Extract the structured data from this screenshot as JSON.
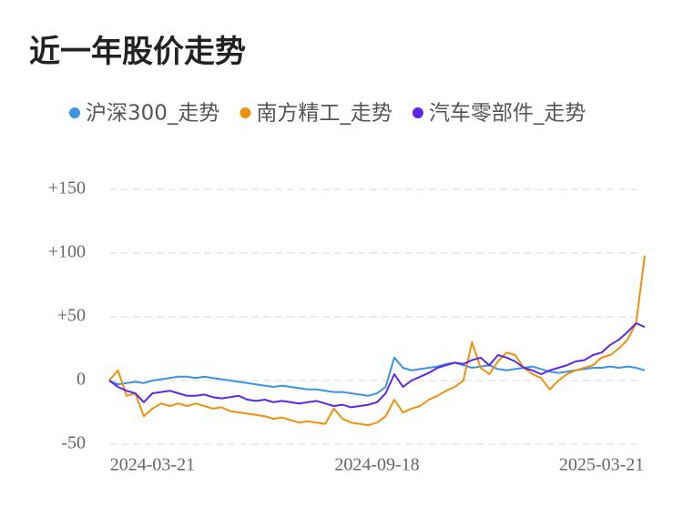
{
  "chart_data": {
    "type": "line",
    "title": "近一年股价走势",
    "categories": [
      null,
      null,
      null,
      null,
      null,
      "2024-03-21",
      null,
      null,
      null,
      null,
      null,
      null,
      null,
      null,
      null,
      null,
      null,
      null,
      null,
      null,
      null,
      null,
      null,
      null,
      null,
      null,
      null,
      null,
      null,
      null,
      null,
      "2024-09-18",
      null,
      null,
      null,
      null,
      null,
      null,
      null,
      null,
      null,
      null,
      null,
      null,
      null,
      null,
      null,
      null,
      null,
      null,
      null,
      null,
      null,
      null,
      null,
      null,
      null,
      "2025-03-21",
      null,
      null,
      null,
      null,
      null
    ],
    "series": [
      {
        "name": "沪深300_走势",
        "color": "#3a94e6",
        "values": [
          0,
          -3,
          -2,
          -1,
          -2,
          0,
          1,
          2,
          3,
          3,
          2,
          3,
          2,
          1,
          0,
          -1,
          -2,
          -3,
          -4,
          -5,
          -4,
          -5,
          -6,
          -7,
          -7,
          -8,
          -9,
          -9,
          -10,
          -11,
          -12,
          -10,
          -5,
          18,
          10,
          8,
          9,
          10,
          11,
          13,
          14,
          12,
          10,
          11,
          12,
          9,
          8,
          9,
          10,
          11,
          9,
          7,
          6,
          7,
          8,
          9,
          10,
          10,
          11,
          10,
          11,
          10,
          8
        ]
      },
      {
        "name": "南方精工_走势",
        "color": "#f0900a",
        "values": [
          0,
          8,
          -12,
          -10,
          -28,
          -22,
          -18,
          -20,
          -18,
          -20,
          -18,
          -20,
          -22,
          -21,
          -24,
          -25,
          -26,
          -27,
          -28,
          -30,
          -29,
          -31,
          -33,
          -32,
          -33,
          -34,
          -22,
          -30,
          -33,
          -34,
          -35,
          -33,
          -28,
          -15,
          -25,
          -22,
          -20,
          -15,
          -12,
          -8,
          -5,
          0,
          30,
          10,
          5,
          15,
          22,
          20,
          10,
          5,
          2,
          -7,
          0,
          5,
          8,
          10,
          12,
          18,
          20,
          25,
          32,
          45,
          98
        ]
      },
      {
        "name": "汽车零部件_走势",
        "color": "#5a28e6",
        "values": [
          0,
          -5,
          -8,
          -10,
          -17,
          -10,
          -9,
          -8,
          -10,
          -12,
          -12,
          -11,
          -13,
          -14,
          -13,
          -12,
          -15,
          -16,
          -15,
          -17,
          -16,
          -17,
          -18,
          -17,
          -16,
          -18,
          -20,
          -19,
          -21,
          -20,
          -19,
          -17,
          -10,
          5,
          -5,
          0,
          3,
          6,
          10,
          12,
          14,
          13,
          16,
          18,
          12,
          20,
          18,
          15,
          10,
          8,
          5,
          8,
          10,
          12,
          15,
          16,
          20,
          22,
          28,
          32,
          38,
          45,
          42
        ]
      }
    ],
    "ylim": [
      -50,
      150
    ],
    "yticks": [
      -50,
      0,
      {
        "value": 50,
        "label": "+50"
      },
      {
        "value": 100,
        "label": "+100"
      },
      {
        "value": 150,
        "label": "+150"
      }
    ],
    "grid": true
  }
}
